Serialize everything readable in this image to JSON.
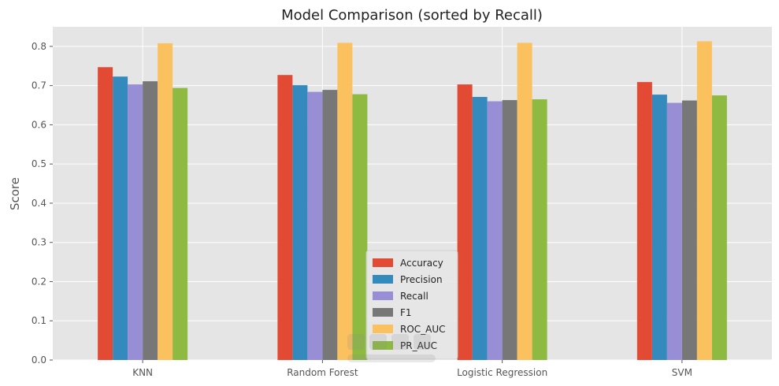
{
  "chart_data": {
    "type": "bar",
    "title": "Model Comparison (sorted by Recall)",
    "xlabel": "",
    "ylabel": "Score",
    "categories": [
      "KNN",
      "Random Forest",
      "Logistic Regression",
      "SVM"
    ],
    "series": [
      {
        "name": "Accuracy",
        "color": "#E24A33",
        "values": [
          0.747,
          0.727,
          0.703,
          0.709
        ]
      },
      {
        "name": "Precision",
        "color": "#348ABD",
        "values": [
          0.723,
          0.701,
          0.671,
          0.677
        ]
      },
      {
        "name": "Recall",
        "color": "#988ED5",
        "values": [
          0.703,
          0.684,
          0.66,
          0.656
        ]
      },
      {
        "name": "F1",
        "color": "#777777",
        "values": [
          0.711,
          0.689,
          0.663,
          0.662
        ]
      },
      {
        "name": "ROC_AUC",
        "color": "#FBC15E",
        "values": [
          0.808,
          0.809,
          0.809,
          0.813
        ]
      },
      {
        "name": "PR_AUC",
        "color": "#8EBA42",
        "values": [
          0.694,
          0.678,
          0.665,
          0.675
        ]
      }
    ],
    "ylim": [
      0,
      0.85
    ],
    "yticks": [
      0.0,
      0.1,
      0.2,
      0.3,
      0.4,
      0.5,
      0.6,
      0.7,
      0.8
    ],
    "ytick_labels": [
      "0.0",
      "0.1",
      "0.2",
      "0.3",
      "0.4",
      "0.5",
      "0.6",
      "0.7",
      "0.8"
    ],
    "grid": true,
    "legend_position": "bottom-center",
    "style": {
      "plot_background": "#E5E5E5",
      "grid_color": "#FFFFFF",
      "text_color": "#555555"
    }
  }
}
